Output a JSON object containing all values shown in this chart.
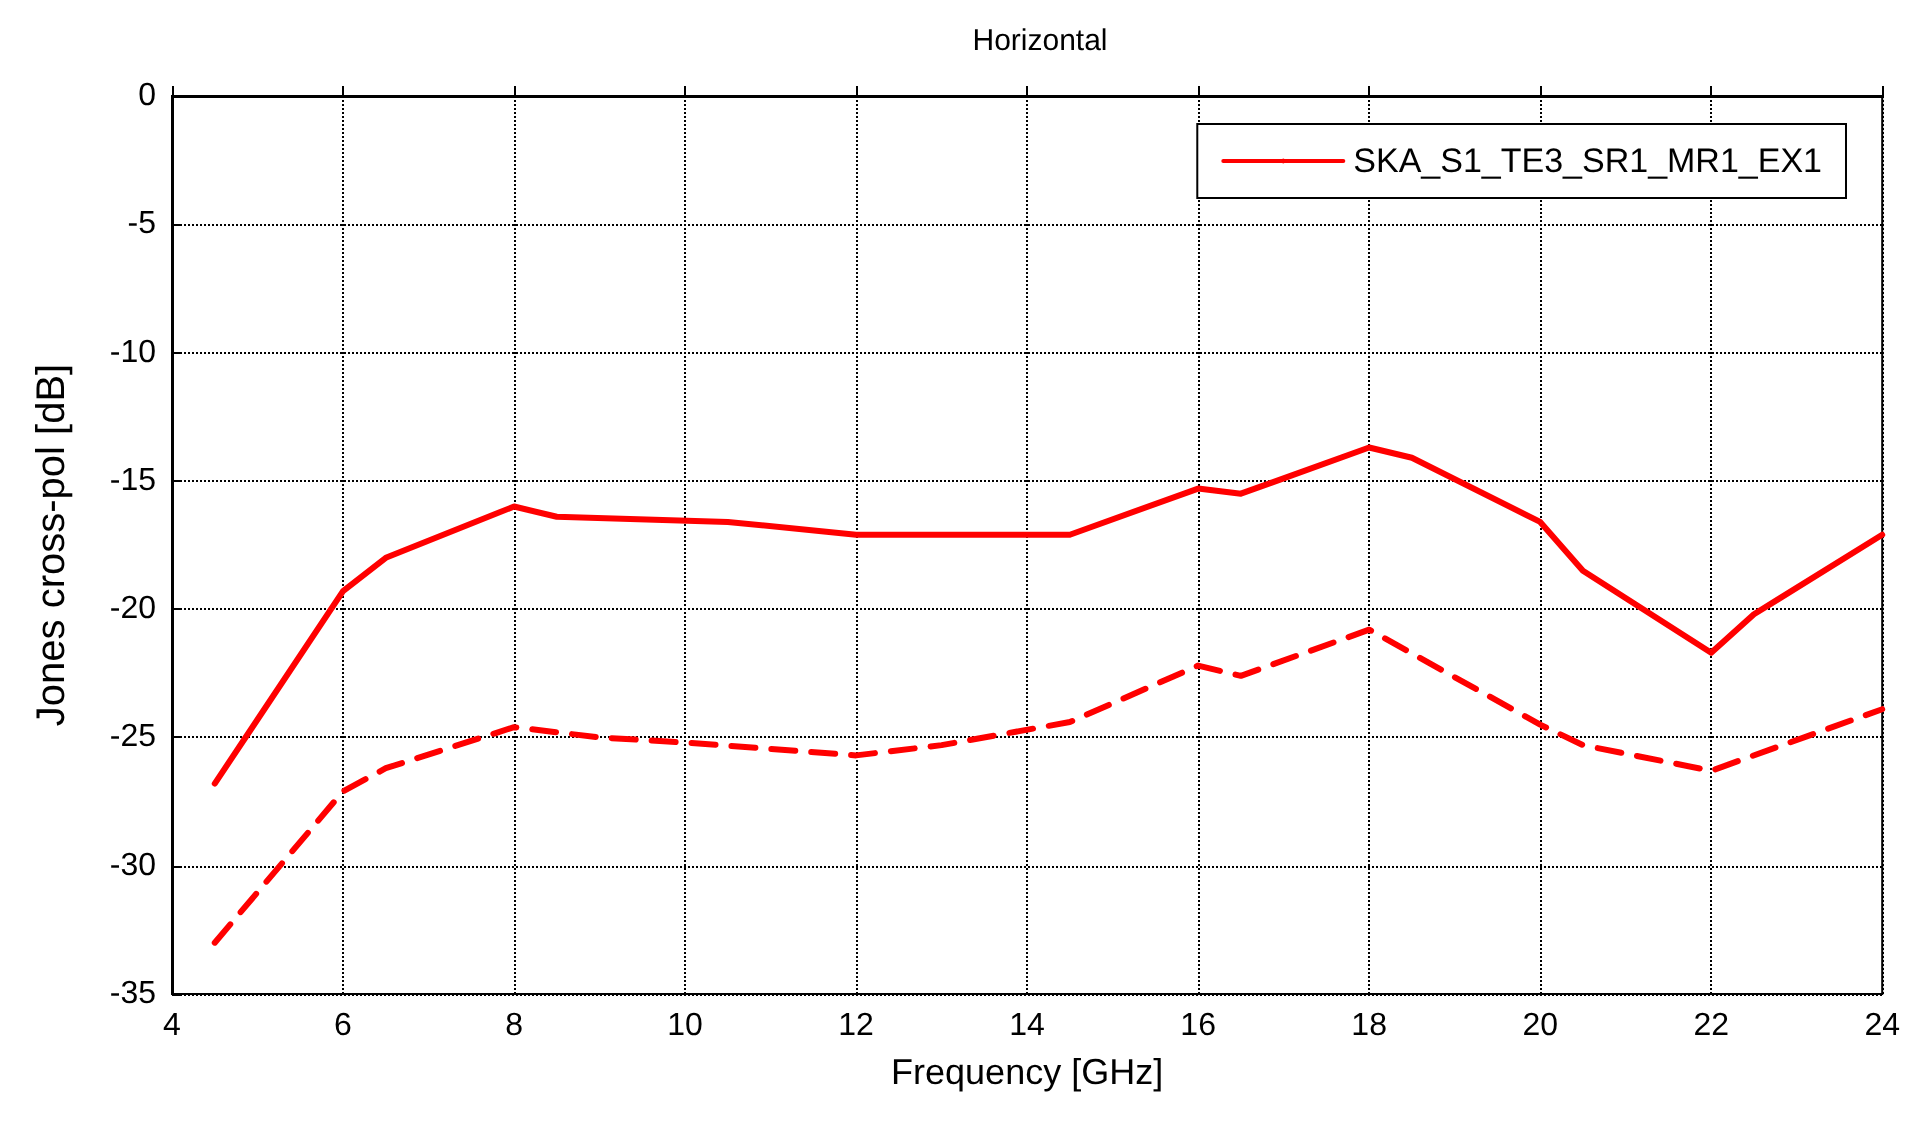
{
  "chart_data": {
    "type": "line",
    "title": "Horizontal",
    "xlabel": "Frequency [GHz]",
    "ylabel": "Jones cross-pol [dB]",
    "xlim": [
      4,
      24
    ],
    "xticks": [
      4,
      6,
      8,
      10,
      12,
      14,
      16,
      18,
      20,
      22,
      24
    ],
    "ylim": [
      -35,
      0
    ],
    "yticks": [
      -35,
      -30,
      -25,
      -20,
      -15,
      -10,
      -5,
      0
    ],
    "grid": true,
    "legend": "top right",
    "marker": "none",
    "series": [
      {
        "name": "SKA_S1_TE3_SR1_MR1_EX1",
        "color": "#ff0000",
        "line_style": "solid",
        "x": [
          4.5,
          6,
          6.5,
          8,
          8.5,
          10.5,
          12,
          13,
          14.5,
          16,
          16.5,
          18,
          18.5,
          20,
          20.5,
          22,
          22.5,
          24
        ],
        "values": [
          -26.8,
          -19.3,
          -18,
          -16,
          -16.4,
          -16.6,
          -17.1,
          -17.1,
          -17.1,
          -15.3,
          -15.5,
          -13.7,
          -14.1,
          -16.6,
          -18.5,
          -21.7,
          -20.2,
          -17.1
        ]
      },
      {
        "color": "#ff0000",
        "line_style": "dashed",
        "x": [
          4.5,
          6,
          6.5,
          8,
          9,
          10,
          12,
          13,
          14.5,
          16,
          16.5,
          18,
          20,
          20.5,
          22,
          24
        ],
        "values": [
          -33,
          -27.1,
          -26.2,
          -24.6,
          -25,
          -25.2,
          -25.7,
          -25.3,
          -24.4,
          -22.2,
          -22.6,
          -20.8,
          -24.5,
          -25.3,
          -26.3,
          -23.9
        ]
      }
    ]
  }
}
